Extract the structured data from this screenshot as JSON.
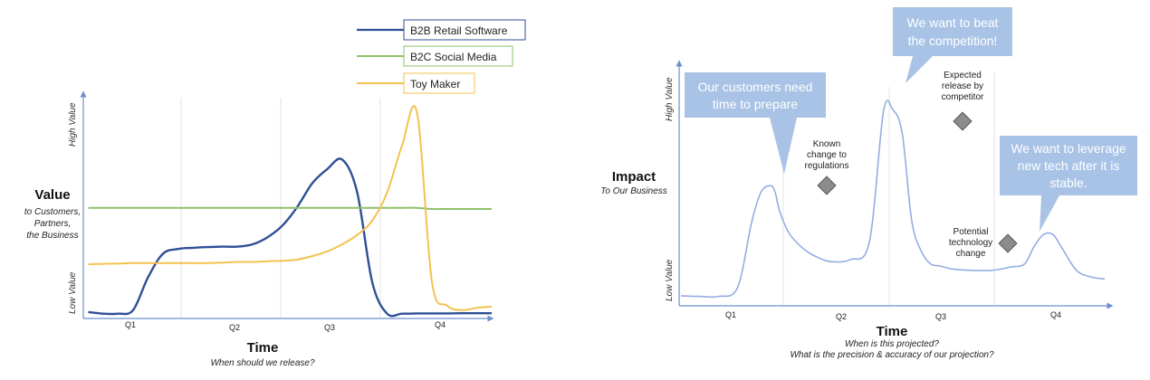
{
  "colors": {
    "b2b": "#2f4f95",
    "b2c": "#8ec16a",
    "toy": "#f2c24f",
    "impact": "#93aee0",
    "callout": "#a9c3e6",
    "diamond": "#8c8c8c",
    "axis": "#6d8fd0"
  },
  "chart_data": [
    {
      "type": "line",
      "title": "",
      "x": [
        0.05,
        0.2,
        0.35,
        0.5,
        0.65,
        0.8,
        0.95,
        1.1,
        1.25,
        1.4,
        1.55,
        1.7,
        1.85,
        2.0,
        2.15,
        2.3,
        2.45,
        2.6,
        2.75,
        2.9,
        3.05,
        3.2,
        3.35,
        3.5,
        3.65,
        3.8,
        3.95,
        4.1
      ],
      "series": [
        {
          "name": "B2B Retail Software",
          "color_key": "b2b",
          "values": [
            0.12,
            0.05,
            0.05,
            0.2,
            1.6,
            2.6,
            2.8,
            2.85,
            2.88,
            2.9,
            2.9,
            3.0,
            3.3,
            3.8,
            4.6,
            5.6,
            6.2,
            6.6,
            5.2,
            1.4,
            0.05,
            0.05,
            0.06,
            0.06,
            0.06,
            0.07,
            0.07,
            0.07
          ]
        },
        {
          "name": "B2C Social Media",
          "color_key": "b2c",
          "values": [
            4.55,
            4.55,
            4.55,
            4.55,
            4.55,
            4.55,
            4.55,
            4.55,
            4.55,
            4.55,
            4.55,
            4.55,
            4.55,
            4.55,
            4.55,
            4.55,
            4.55,
            4.55,
            4.55,
            4.55,
            4.55,
            4.55,
            4.55,
            4.5,
            4.5,
            4.5,
            4.5,
            4.5
          ]
        },
        {
          "name": "Toy Maker",
          "color_key": "toy",
          "values": [
            2.15,
            2.17,
            2.18,
            2.2,
            2.2,
            2.2,
            2.2,
            2.2,
            2.2,
            2.22,
            2.25,
            2.25,
            2.28,
            2.3,
            2.35,
            2.5,
            2.7,
            3.0,
            3.4,
            4.0,
            5.2,
            7.2,
            8.6,
            1.4,
            0.4,
            0.2,
            0.3,
            0.35
          ]
        }
      ],
      "x_ticks": [
        "Q1",
        "Q2",
        "Q3",
        "Q4"
      ],
      "ylim": [
        0,
        10
      ],
      "grid": "vertical quarter dividers",
      "legend": "top-center"
    },
    {
      "type": "line",
      "title": "",
      "x": [
        0.0,
        0.2,
        0.4,
        0.6,
        0.75,
        0.85,
        0.95,
        1.0,
        1.05,
        1.15,
        1.3,
        1.45,
        1.6,
        1.8,
        2.0,
        2.15,
        2.25,
        2.35,
        2.45,
        2.55,
        2.65,
        2.75,
        2.9,
        3.1,
        3.3,
        3.5,
        3.65,
        3.75,
        3.85,
        3.95,
        4.05,
        4.2,
        4.35,
        4.5
      ],
      "series": [
        {
          "name": "",
          "color_key": "impact",
          "values": [
            0.12,
            0.1,
            0.1,
            0.5,
            3.5,
            4.9,
            5.2,
            4.9,
            4.0,
            3.0,
            2.3,
            1.9,
            1.7,
            1.8,
            2.6,
            8.6,
            8.7,
            7.6,
            3.6,
            2.2,
            1.6,
            1.5,
            1.35,
            1.3,
            1.3,
            1.45,
            1.6,
            2.4,
            2.95,
            2.95,
            2.3,
            1.3,
            1.0,
            0.9
          ]
        }
      ],
      "x_ticks": [
        "Q1",
        "Q2",
        "Q3",
        "Q4"
      ],
      "ylim": [
        0,
        10
      ],
      "grid": "vertical quarter dividers",
      "legend": "none"
    }
  ],
  "left_chart": {
    "high_label": "High Value",
    "low_label": "Low Value",
    "y_title": "Value",
    "y_sub": [
      "to Customers,",
      "Partners,",
      "the Business"
    ],
    "x_title": "Time",
    "x_sub": "When should we release?",
    "legend": [
      "B2B Retail Software",
      "B2C Social Media",
      "Toy Maker"
    ]
  },
  "right_chart": {
    "high_label": "High Value",
    "low_label": "Low Value",
    "y_title": "Impact",
    "y_sub": "To Our Business",
    "x_title": "Time",
    "x_sub": [
      "When is this projected?",
      "What is the precision & accuracy of our projection?"
    ],
    "callouts": [
      [
        "Our customers need",
        "time to prepare"
      ],
      [
        "We want to beat",
        "the competition!"
      ],
      [
        "We want to leverage",
        "new tech after it is",
        "stable."
      ]
    ],
    "notes": [
      [
        "Known",
        "change to",
        "regulations"
      ],
      [
        "Expected",
        "release by",
        "competitor"
      ],
      [
        "Potential",
        "technology",
        "change"
      ]
    ]
  }
}
